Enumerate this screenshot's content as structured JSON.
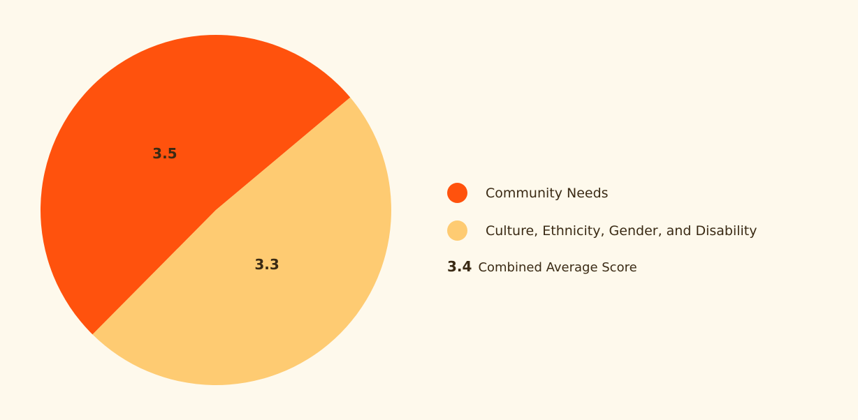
{
  "chart_data": {
    "type": "pie",
    "title": "",
    "legend_position": "right",
    "slices": [
      {
        "name": "Community Needs",
        "value": 3.5,
        "label": "3.5",
        "color": "#ff520d"
      },
      {
        "name": "Culture, Ethnicity, Gender, and Disability",
        "value": 3.3,
        "label": "3.3",
        "color": "#fecb72"
      }
    ]
  },
  "summary": {
    "value": "3.4",
    "label": "Combined Average Score"
  },
  "colors": {
    "background": "#fef9ec",
    "text": "#3a2a14"
  }
}
